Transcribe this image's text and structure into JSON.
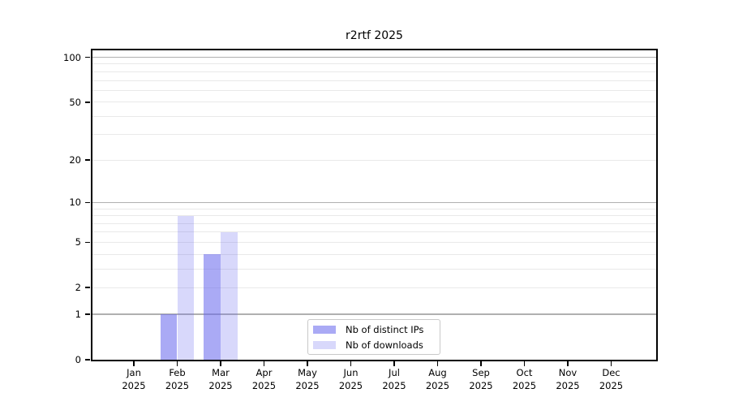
{
  "chart_data": {
    "type": "bar",
    "title": "r2rtf 2025",
    "x_categories": [
      "Jan",
      "Feb",
      "Mar",
      "Apr",
      "May",
      "Jun",
      "Jul",
      "Aug",
      "Sep",
      "Oct",
      "Nov",
      "Dec"
    ],
    "x_category_year": "2025",
    "series": [
      {
        "name": "Nb of distinct IPs",
        "color": "#6868ee",
        "opacity": 0.56,
        "values": [
          0,
          1,
          4,
          0,
          0,
          0,
          0,
          0,
          0,
          0,
          0,
          0
        ]
      },
      {
        "name": "Nb of downloads",
        "color": "#6868ee",
        "opacity": 0.26,
        "values": [
          0,
          8,
          6,
          0,
          0,
          0,
          0,
          0,
          0,
          0,
          0,
          0
        ]
      }
    ],
    "y_axis": {
      "scale": "log1p",
      "tick_labels": [
        0,
        1,
        2,
        5,
        10,
        20,
        50,
        100
      ],
      "major_gridlines": [
        1,
        10,
        100
      ],
      "minor_gridlines": [
        2,
        3,
        4,
        5,
        6,
        7,
        8,
        9,
        20,
        30,
        40,
        50,
        60,
        70,
        80,
        90
      ]
    },
    "legend": {
      "entries": [
        "Nb of distinct IPs",
        "Nb of downloads"
      ],
      "position": "lower center"
    },
    "colors": {
      "background": "#ffffff",
      "spine": "#000000",
      "major_grid": "#b0b0b0",
      "minor_grid": "#e9e9e9",
      "legend_border": "#c9c9c9",
      "text": "#000000"
    }
  }
}
